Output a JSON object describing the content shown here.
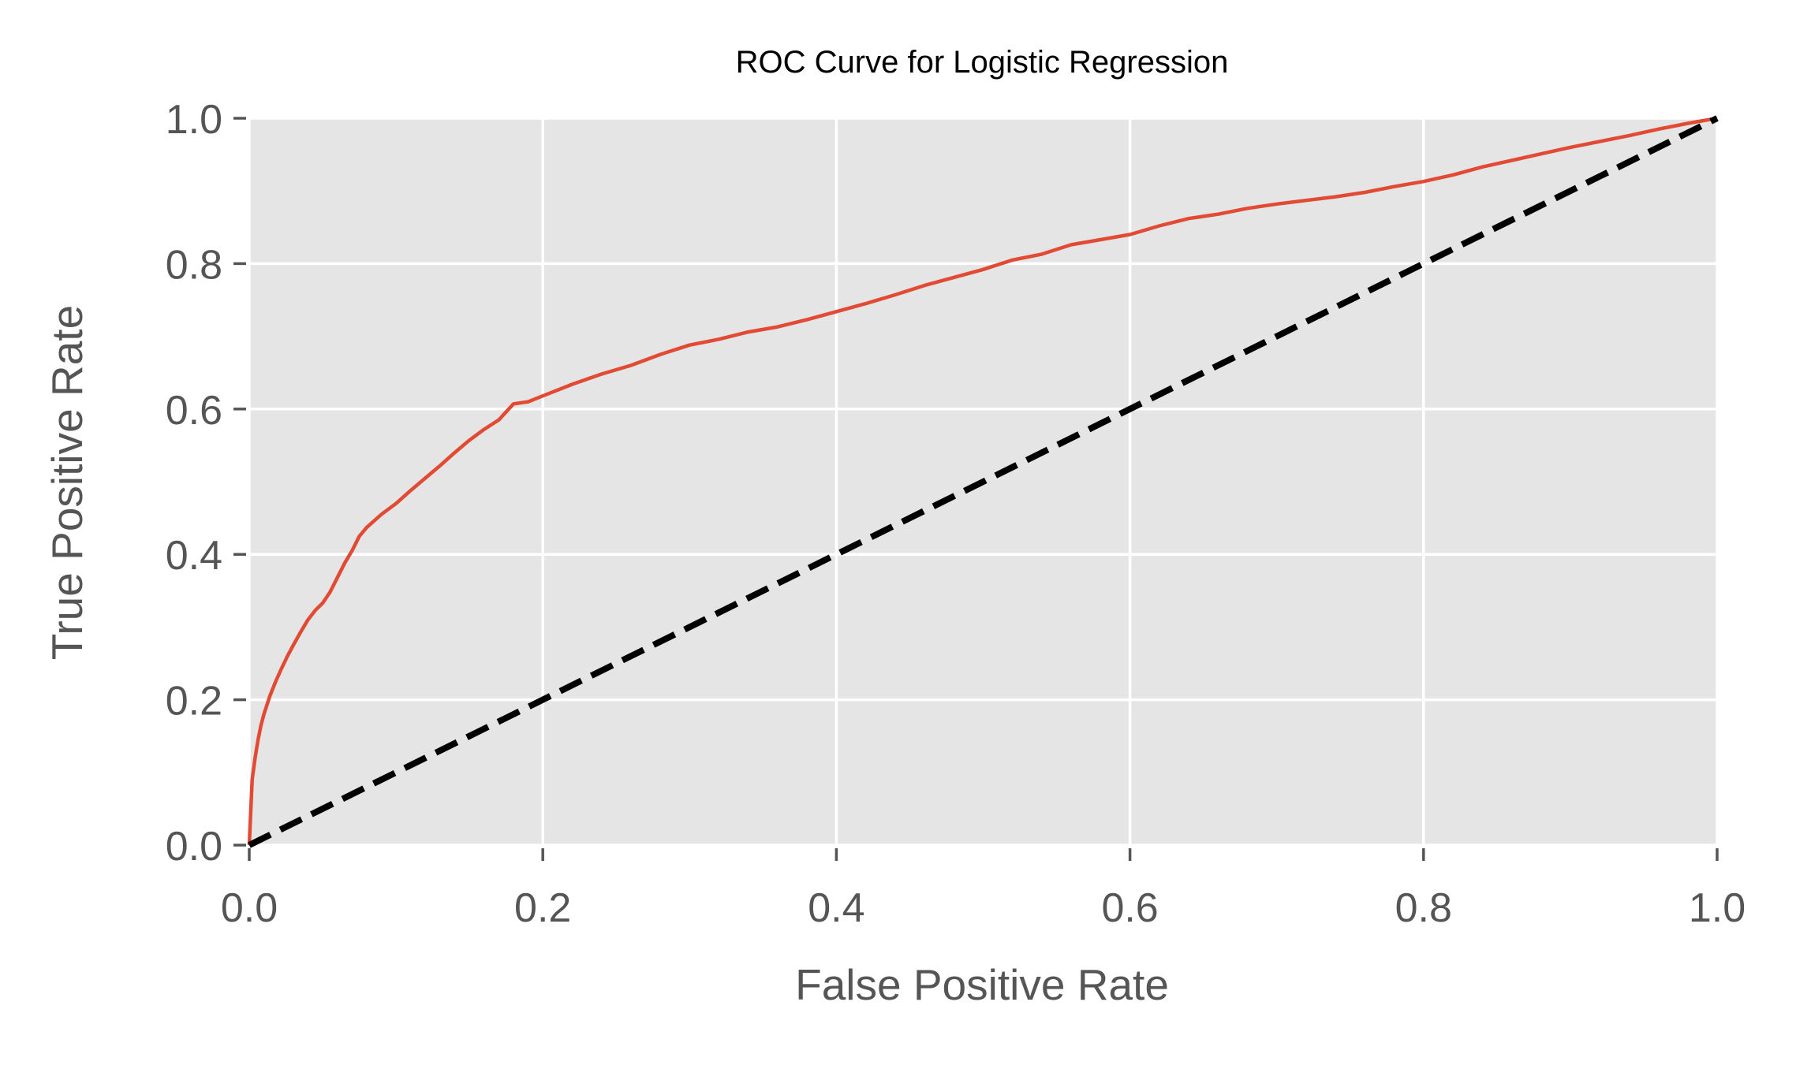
{
  "chart_data": {
    "type": "line",
    "title": "ROC Curve for Logistic Regression",
    "xlabel": "False Positive Rate",
    "ylabel": "True Positive Rate",
    "xlim": [
      0.0,
      1.0
    ],
    "ylim": [
      0.0,
      1.0
    ],
    "x_ticks": [
      0.0,
      0.2,
      0.4,
      0.6,
      0.8,
      1.0
    ],
    "y_ticks": [
      0.0,
      0.2,
      0.4,
      0.6,
      0.8,
      1.0
    ],
    "x_tick_labels": [
      "0.0",
      "0.2",
      "0.4",
      "0.6",
      "0.8",
      "1.0"
    ],
    "y_tick_labels": [
      "0.0",
      "0.2",
      "0.4",
      "0.6",
      "0.8",
      "1.0"
    ],
    "grid": true,
    "legend": "none",
    "colors": {
      "plot_background": "#e5e5e5",
      "grid": "#ffffff",
      "roc_line": "#e24a33",
      "diagonal": "#000000",
      "tick_text": "#555555",
      "title_text": "#000000"
    },
    "series": [
      {
        "style": "solid",
        "x": [
          0.0,
          0.002,
          0.004,
          0.006,
          0.008,
          0.01,
          0.014,
          0.018,
          0.022,
          0.026,
          0.03,
          0.035,
          0.04,
          0.045,
          0.05,
          0.055,
          0.06,
          0.065,
          0.07,
          0.075,
          0.08,
          0.09,
          0.1,
          0.11,
          0.12,
          0.13,
          0.14,
          0.15,
          0.16,
          0.17,
          0.18,
          0.19,
          0.2,
          0.22,
          0.24,
          0.26,
          0.28,
          0.3,
          0.32,
          0.34,
          0.36,
          0.38,
          0.4,
          0.42,
          0.44,
          0.46,
          0.48,
          0.5,
          0.52,
          0.54,
          0.56,
          0.58,
          0.6,
          0.62,
          0.64,
          0.66,
          0.68,
          0.7,
          0.72,
          0.74,
          0.76,
          0.78,
          0.8,
          0.82,
          0.84,
          0.86,
          0.88,
          0.9,
          0.92,
          0.94,
          0.96,
          0.98,
          1.0
        ],
        "y": [
          0.0,
          0.09,
          0.12,
          0.145,
          0.165,
          0.18,
          0.205,
          0.225,
          0.243,
          0.26,
          0.275,
          0.293,
          0.31,
          0.323,
          0.333,
          0.348,
          0.368,
          0.388,
          0.405,
          0.425,
          0.437,
          0.455,
          0.47,
          0.488,
          0.505,
          0.522,
          0.54,
          0.557,
          0.572,
          0.585,
          0.607,
          0.61,
          0.618,
          0.634,
          0.648,
          0.66,
          0.675,
          0.688,
          0.696,
          0.706,
          0.713,
          0.723,
          0.734,
          0.745,
          0.757,
          0.77,
          0.781,
          0.792,
          0.805,
          0.813,
          0.826,
          0.833,
          0.84,
          0.852,
          0.862,
          0.868,
          0.876,
          0.882,
          0.887,
          0.892,
          0.898,
          0.906,
          0.913,
          0.922,
          0.933,
          0.942,
          0.951,
          0.96,
          0.968,
          0.976,
          0.985,
          0.993,
          1.0
        ]
      },
      {
        "style": "dashed",
        "x": [
          0.0,
          1.0
        ],
        "y": [
          0.0,
          1.0
        ]
      }
    ]
  }
}
